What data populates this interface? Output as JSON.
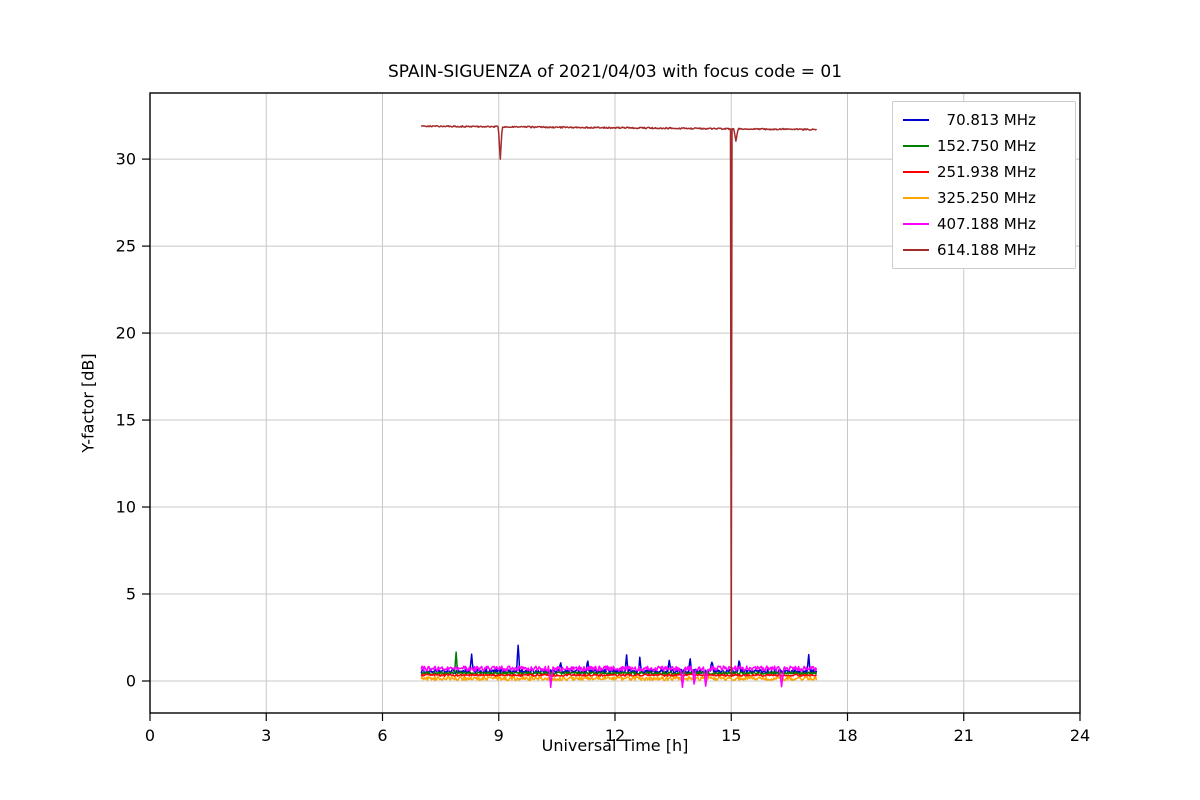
{
  "chart_data": {
    "type": "line",
    "title": "SPAIN-SIGUENZA of 2021/04/03 with focus code = 01",
    "xlabel": "Universal Time [h]",
    "ylabel": "Y-factor [dB]",
    "xlim": [
      0,
      24
    ],
    "ylim": [
      -1.84,
      33.8
    ],
    "xticks": [
      0,
      3,
      6,
      9,
      12,
      15,
      18,
      21,
      24
    ],
    "yticks": [
      0,
      5,
      10,
      15,
      20,
      25,
      30
    ],
    "grid": true,
    "grid_color": "#c8c8c8",
    "axis_color": "#000000",
    "legend_position": "upper right",
    "x_start": 7.0,
    "x_end": 17.2,
    "x_step": 0.02,
    "series": [
      {
        "name": "  70.813 MHz",
        "color": "#0000cd",
        "baseline": 0.55,
        "noise": 0.13,
        "events": [
          {
            "x": 8.3,
            "y": 1.5,
            "w": 0.04
          },
          {
            "x": 9.5,
            "y": 2.15,
            "w": 0.04
          },
          {
            "x": 10.6,
            "y": 1.1,
            "w": 0.04
          },
          {
            "x": 11.3,
            "y": 1.25,
            "w": 0.04
          },
          {
            "x": 12.3,
            "y": 1.4,
            "w": 0.04
          },
          {
            "x": 12.64,
            "y": 1.3,
            "w": 0.04
          },
          {
            "x": 13.4,
            "y": 1.2,
            "w": 0.04
          },
          {
            "x": 13.94,
            "y": 1.35,
            "w": 0.04
          },
          {
            "x": 14.5,
            "y": 1.15,
            "w": 0.04
          },
          {
            "x": 15.2,
            "y": 1.25,
            "w": 0.04
          },
          {
            "x": 17.0,
            "y": 1.5,
            "w": 0.04
          }
        ]
      },
      {
        "name": "152.750 MHz",
        "color": "#008000",
        "baseline": 0.45,
        "noise": 0.07,
        "events": [
          {
            "x": 7.9,
            "y": 1.65,
            "w": 0.04
          }
        ]
      },
      {
        "name": "251.938 MHz",
        "color": "#ff0000",
        "baseline": 0.33,
        "noise": 0.06,
        "events": []
      },
      {
        "name": "325.250 MHz",
        "color": "#ffa500",
        "baseline": 0.14,
        "noise": 0.11,
        "events": []
      },
      {
        "name": "407.188 MHz",
        "color": "#ff00ff",
        "baseline": 0.72,
        "noise": 0.14,
        "events": [
          {
            "x": 10.34,
            "y": -0.25,
            "w": 0.05
          },
          {
            "x": 13.74,
            "y": -0.3,
            "w": 0.05
          },
          {
            "x": 14.04,
            "y": -0.25,
            "w": 0.05
          },
          {
            "x": 14.34,
            "y": -0.3,
            "w": 0.05
          },
          {
            "x": 16.3,
            "y": -0.25,
            "w": 0.05
          }
        ]
      },
      {
        "name": "614.188 MHz",
        "color": "#a52a2a",
        "baseline": 31.9,
        "baseline_end": 31.7,
        "noise": 0.04,
        "events": [
          {
            "x": 9.04,
            "y": 30.0,
            "w": 0.05
          },
          {
            "x": 15.0,
            "y": 0.3,
            "w": 0.02
          },
          {
            "x": 15.12,
            "y": 31.05,
            "w": 0.06
          }
        ]
      }
    ]
  }
}
